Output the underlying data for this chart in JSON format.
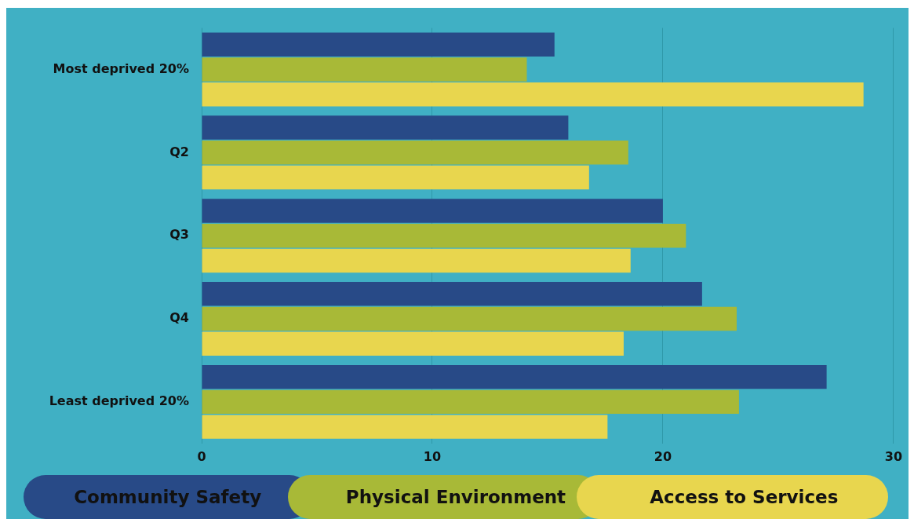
{
  "chart_data": {
    "type": "bar",
    "orientation": "horizontal",
    "categories": [
      "Most deprived 20%",
      "Q2",
      "Q3",
      "Q4",
      "Least deprived 20%"
    ],
    "series": [
      {
        "name": "Community Safety",
        "color": "#284a87",
        "values": [
          15.3,
          15.9,
          20.0,
          21.7,
          27.1
        ]
      },
      {
        "name": "Physical Environment",
        "color": "#a8b937",
        "values": [
          14.1,
          18.5,
          21.0,
          23.2,
          23.3
        ]
      },
      {
        "name": "Access to Services",
        "color": "#e8d64e",
        "values": [
          28.7,
          16.8,
          18.6,
          18.3,
          17.6
        ]
      }
    ],
    "xlim": [
      0,
      30
    ],
    "xticks": [
      0,
      10,
      20,
      30
    ],
    "grid": "x",
    "legend": "bottom"
  }
}
